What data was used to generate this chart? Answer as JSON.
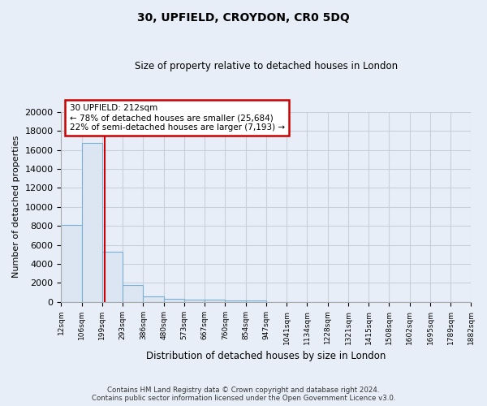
{
  "title": "30, UPFIELD, CROYDON, CR0 5DQ",
  "subtitle": "Size of property relative to detached houses in London",
  "xlabel": "Distribution of detached houses by size in London",
  "ylabel": "Number of detached properties",
  "footer_line1": "Contains HM Land Registry data © Crown copyright and database right 2024.",
  "footer_line2": "Contains public sector information licensed under the Open Government Licence v3.0.",
  "bin_labels": [
    "12sqm",
    "106sqm",
    "199sqm",
    "293sqm",
    "386sqm",
    "480sqm",
    "573sqm",
    "667sqm",
    "760sqm",
    "854sqm",
    "947sqm",
    "1041sqm",
    "1134sqm",
    "1228sqm",
    "1321sqm",
    "1415sqm",
    "1508sqm",
    "1602sqm",
    "1695sqm",
    "1789sqm",
    "1882sqm"
  ],
  "bin_edges": [
    12,
    106,
    199,
    293,
    386,
    480,
    573,
    667,
    760,
    854,
    947,
    1041,
    1134,
    1228,
    1321,
    1415,
    1508,
    1602,
    1695,
    1789,
    1882
  ],
  "bar_heights": [
    8100,
    16700,
    5300,
    1750,
    550,
    310,
    230,
    200,
    170,
    150,
    0,
    0,
    0,
    0,
    0,
    0,
    0,
    0,
    0,
    0
  ],
  "bar_color": "#dce6f2",
  "bar_edge_color": "#7aafd4",
  "background_color": "#e8eef8",
  "grid_color": "#c8d0dc",
  "property_size": 212,
  "property_line_color": "#cc0000",
  "annotation_text": "30 UPFIELD: 212sqm\n← 78% of detached houses are smaller (25,684)\n22% of semi-detached houses are larger (7,193) →",
  "annotation_box_color": "#ffffff",
  "annotation_box_edge": "#cc0000",
  "annotation_text_color": "#000000",
  "ylim": [
    0,
    20000
  ],
  "yticks": [
    0,
    2000,
    4000,
    6000,
    8000,
    10000,
    12000,
    14000,
    16000,
    18000,
    20000
  ]
}
